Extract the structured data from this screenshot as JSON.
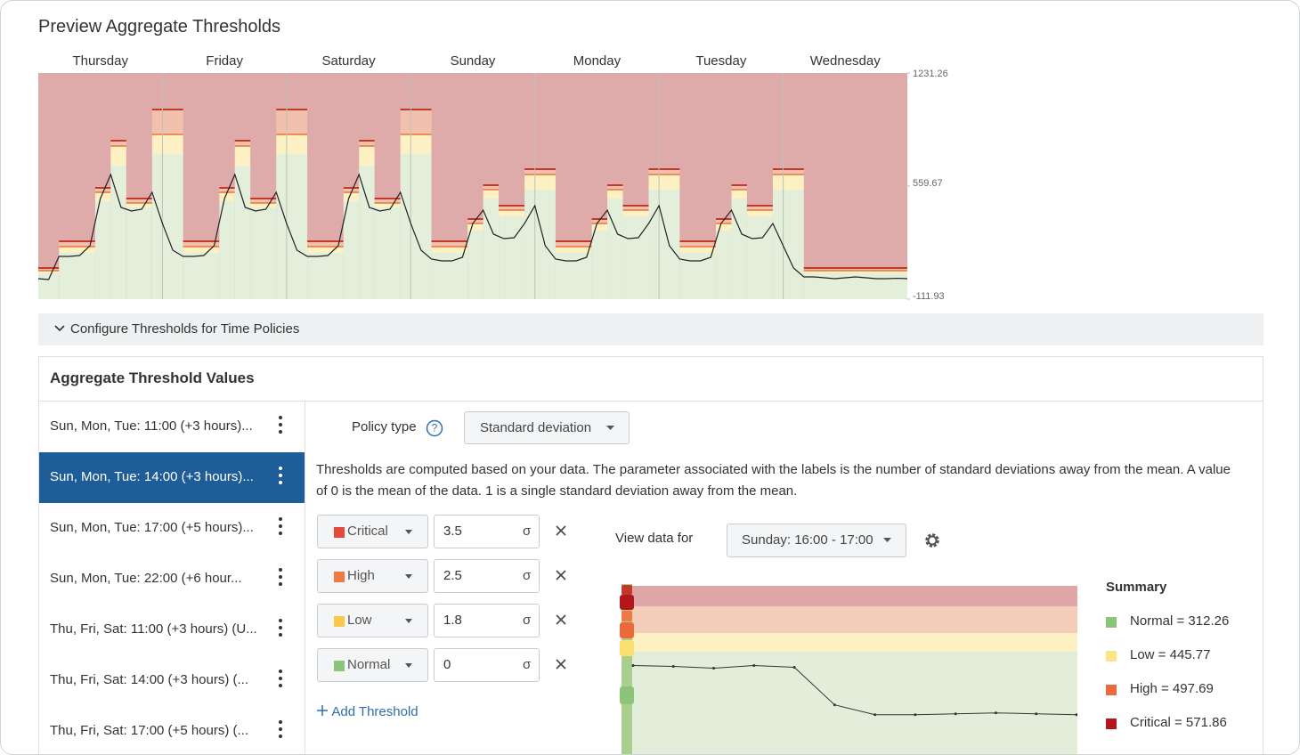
{
  "header": {
    "title": "Preview Aggregate Thresholds"
  },
  "chart_data": [
    {
      "type": "line",
      "categories": [
        "Thursday",
        "Friday",
        "Saturday",
        "Sunday",
        "Monday",
        "Tuesday",
        "Wednesday"
      ],
      "x": [
        0,
        2,
        4,
        6,
        8,
        10,
        12,
        14,
        16,
        18,
        20,
        22,
        24,
        26,
        28,
        30,
        32,
        34,
        36,
        38,
        40,
        42,
        44,
        46,
        48,
        50,
        52,
        54,
        56,
        58,
        60,
        62,
        64,
        66,
        68,
        70,
        72,
        74,
        76,
        78,
        80,
        82,
        84,
        86,
        88,
        90,
        92,
        94,
        96,
        98,
        100,
        102,
        104,
        106,
        108,
        110,
        112,
        114,
        116,
        118,
        120,
        122,
        124,
        126,
        128,
        130,
        132,
        134,
        136,
        138,
        140,
        142,
        144,
        146,
        148,
        150,
        152,
        154,
        156,
        158,
        160,
        162,
        164,
        166,
        168
      ],
      "values": [
        9.8,
        4.5,
        141.9,
        141.9,
        147.2,
        205.4,
        485.7,
        628.5,
        432.8,
        411.7,
        422.2,
        522.7,
        337.6,
        178.9,
        141.9,
        141.9,
        147.2,
        205.4,
        485.7,
        628.5,
        432.8,
        411.7,
        422.2,
        522.7,
        337.6,
        178.9,
        141.9,
        141.9,
        147.2,
        205.4,
        485.7,
        628.5,
        432.8,
        411.7,
        422.2,
        522.7,
        337.6,
        178.9,
        126.1,
        115.5,
        115.5,
        136.7,
        337.6,
        416.9,
        274.2,
        247.7,
        253.0,
        337.6,
        443.4,
        205.4,
        126.1,
        115.5,
        115.5,
        136.7,
        337.6,
        416.9,
        274.2,
        247.7,
        253.0,
        337.6,
        443.4,
        205.4,
        126.1,
        115.5,
        115.5,
        136.7,
        337.6,
        416.9,
        274.2,
        247.7,
        253.0,
        337.6,
        205.4,
        73.2,
        20.3,
        20.3,
        15.0,
        9.8,
        15.0,
        20.3,
        15.0,
        9.8,
        9.8,
        12.0,
        9.8
      ],
      "color": "#222222",
      "xlim": [
        0,
        168
      ],
      "ylim": [
        -111.93,
        1231.26
      ],
      "yticks": [
        -111.93,
        559.67,
        1231.26
      ],
      "thresholds": [
        {
          "start": 0,
          "end": 4,
          "critical": 73.2,
          "high": 57.4,
          "low": 41.5
        },
        {
          "start": 4,
          "end": 11,
          "critical": 231.9,
          "high": 200.1,
          "low": 163.1
        },
        {
          "start": 11,
          "end": 14,
          "critical": 549.1,
          "high": 522.7,
          "low": 469.8
        },
        {
          "start": 14,
          "end": 17,
          "critical": 829.4,
          "high": 797.7,
          "low": 681.3
        },
        {
          "start": 17,
          "end": 22,
          "critical": 485.7,
          "high": 459.3,
          "low": 432.8
        },
        {
          "start": 22,
          "end": 28,
          "critical": 1014.5,
          "high": 866.4,
          "low": 750.1
        },
        {
          "start": 28,
          "end": 35,
          "critical": 231.9,
          "high": 200.1,
          "low": 163.1
        },
        {
          "start": 35,
          "end": 38,
          "critical": 549.1,
          "high": 522.7,
          "low": 469.8
        },
        {
          "start": 38,
          "end": 41,
          "critical": 829.4,
          "high": 797.7,
          "low": 681.3
        },
        {
          "start": 41,
          "end": 46,
          "critical": 485.7,
          "high": 459.3,
          "low": 432.8
        },
        {
          "start": 46,
          "end": 52,
          "critical": 1014.5,
          "high": 866.4,
          "low": 750.1
        },
        {
          "start": 52,
          "end": 59,
          "critical": 231.9,
          "high": 200.1,
          "low": 163.1
        },
        {
          "start": 59,
          "end": 62,
          "critical": 549.1,
          "high": 522.7,
          "low": 469.8
        },
        {
          "start": 62,
          "end": 65,
          "critical": 829.4,
          "high": 797.7,
          "low": 681.3
        },
        {
          "start": 65,
          "end": 70,
          "critical": 485.7,
          "high": 459.3,
          "low": 432.8
        },
        {
          "start": 70,
          "end": 76,
          "critical": 1014.5,
          "high": 866.4,
          "low": 750.1
        },
        {
          "start": 76,
          "end": 83,
          "critical": 231.9,
          "high": 200.1,
          "low": 163.1
        },
        {
          "start": 83,
          "end": 86,
          "critical": 364.1,
          "high": 337.6,
          "low": 295.3
        },
        {
          "start": 86,
          "end": 89,
          "critical": 565.0,
          "high": 538.6,
          "low": 485.7
        },
        {
          "start": 89,
          "end": 94,
          "critical": 443.4,
          "high": 416.9,
          "low": 379.9
        },
        {
          "start": 94,
          "end": 100,
          "critical": 660.2,
          "high": 628.5,
          "low": 538.6
        },
        {
          "start": 100,
          "end": 107,
          "critical": 231.9,
          "high": 200.1,
          "low": 163.1
        },
        {
          "start": 107,
          "end": 110,
          "critical": 364.1,
          "high": 337.6,
          "low": 295.3
        },
        {
          "start": 110,
          "end": 113,
          "critical": 565.0,
          "high": 538.6,
          "low": 485.7
        },
        {
          "start": 113,
          "end": 118,
          "critical": 443.4,
          "high": 416.9,
          "low": 379.9
        },
        {
          "start": 118,
          "end": 124,
          "critical": 660.2,
          "high": 628.5,
          "low": 538.6
        },
        {
          "start": 124,
          "end": 131,
          "critical": 231.9,
          "high": 200.1,
          "low": 163.1
        },
        {
          "start": 131,
          "end": 134,
          "critical": 364.1,
          "high": 337.6,
          "low": 295.3
        },
        {
          "start": 134,
          "end": 137,
          "critical": 565.0,
          "high": 538.6,
          "low": 485.7
        },
        {
          "start": 137,
          "end": 142,
          "critical": 443.4,
          "high": 416.9,
          "low": 379.9
        },
        {
          "start": 142,
          "end": 148,
          "critical": 660.2,
          "high": 628.5,
          "low": 538.6
        },
        {
          "start": 148,
          "end": 168,
          "critical": 73.2,
          "high": 57.4,
          "low": 41.5
        }
      ]
    },
    {
      "type": "line",
      "ylim": [
        0,
        700
      ],
      "color": "#333333",
      "values": [
        368.2,
        364.6,
        357.3,
        368.2,
        361.0,
        207.8,
        167.7,
        167.7,
        171.4,
        175.0,
        171.4,
        167.7
      ]
    }
  ],
  "configure": {
    "label": "Configure Thresholds for Time Policies"
  },
  "panel": {
    "title": "Aggregate Threshold Values",
    "policies": [
      "Sun, Mon, Tue: 11:00 (+3 hours)...",
      "Sun, Mon, Tue: 14:00 (+3 hours)...",
      "Sun, Mon, Tue: 17:00 (+5 hours)...",
      "Sun, Mon, Tue: 22:00 (+6 hour...",
      "Thu, Fri, Sat: 11:00 (+3 hours) (U...",
      "Thu, Fri, Sat: 14:00 (+3 hours) (...",
      "Thu, Fri, Sat: 17:00 (+5 hours) (..."
    ],
    "selected": 1,
    "policy_type_label": "Policy type",
    "policy_type": "Standard deviation",
    "description": "Thresholds are computed based on your data. The parameter associated with the labels is the number of standard deviations away from the mean. A value of 0 is the mean of the data. 1 is a single standard deviation away from the mean.",
    "thresholds": [
      {
        "label": "Critical",
        "value": 3.5,
        "color": "#e34a3b"
      },
      {
        "label": "High",
        "value": 2.5,
        "color": "#ef7a45"
      },
      {
        "label": "Low",
        "value": 1.8,
        "color": "#f8c84a"
      },
      {
        "label": "Normal",
        "value": 0,
        "color": "#8cc47a"
      }
    ],
    "unit": "σ",
    "add_threshold": "Add Threshold",
    "view_data_label": "View data for",
    "view_data_value": "Sunday: 16:00 - 17:00",
    "summary_title": "Summary",
    "summary": [
      {
        "label": "Normal = 312.26",
        "color": "#8cc47a"
      },
      {
        "label": "Low = 445.77",
        "color": "#fbe58a"
      },
      {
        "label": "High = 497.69",
        "color": "#ec6a3a"
      },
      {
        "label": "Critical = 571.86",
        "color": "#b3171b"
      }
    ]
  }
}
